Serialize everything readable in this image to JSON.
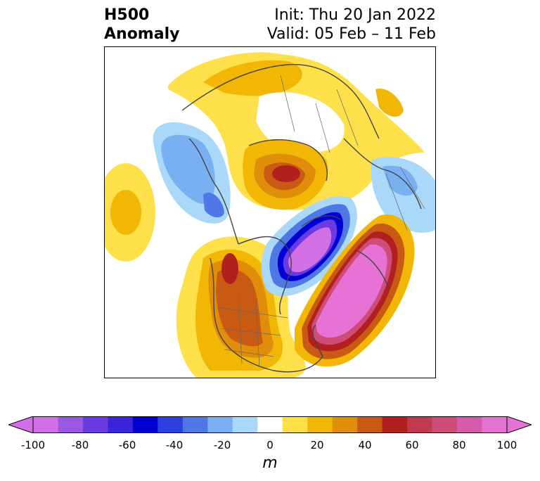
{
  "title": {
    "left_line1": "H500",
    "left_line2": "Anomaly",
    "init": "Init: Thu 20 Jan 2022",
    "valid": "Valid: 05 Feb – 11 Feb"
  },
  "colorbar": {
    "unit": "m",
    "ticks": [
      "-100",
      "-80",
      "-60",
      "-40",
      "-20",
      "0",
      "20",
      "40",
      "60",
      "80",
      "100"
    ],
    "colors": [
      "#d470e6",
      "#9a58e3",
      "#6a3be0",
      "#3a24db",
      "#0000d4",
      "#2b40dc",
      "#4f78e6",
      "#79b0f2",
      "#a9d8f8",
      "#ffffff",
      "#fde04a",
      "#f2b705",
      "#e08e0a",
      "#c85a14",
      "#b1201e",
      "#c03a50",
      "#cd4c78",
      "#d65cab",
      "#e672d6"
    ],
    "min": -100,
    "max": 100,
    "step": 10
  },
  "map": {
    "projection": "polar-stereographic",
    "field": "500 hPa height anomaly"
  }
}
